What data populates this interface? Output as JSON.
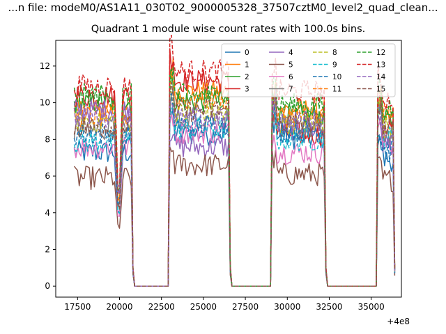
{
  "suptitle": "...n file: modeM0/AS1A11_030T02_9000005328_37507cztM0_level2_quad_clean...",
  "chart_data": {
    "type": "line",
    "title": "Quadrant 1 module wise count rates with 100.0s bins.",
    "xlabel": "",
    "ylabel": "",
    "x_offset_label": "+4e8",
    "xlim": [
      16200,
      36800
    ],
    "ylim": [
      -0.6,
      13.4
    ],
    "xticks": [
      17500,
      20000,
      22500,
      25000,
      27500,
      30000,
      32500,
      35000
    ],
    "yticks": [
      0,
      2,
      4,
      6,
      8,
      10,
      12
    ],
    "legend_position": "upper-right",
    "legend_ncol": 4,
    "bins_s": 100.0,
    "segments": [
      {
        "start": 17300,
        "end": 20800
      },
      {
        "start": 23000,
        "end": 26600
      },
      {
        "start": 29100,
        "end": 32300
      },
      {
        "start": 35400,
        "end": 36400
      }
    ],
    "dip": {
      "x": 19950,
      "y_factor": 0.4
    },
    "series": [
      {
        "name": "0",
        "color": "#1f77b4",
        "dash": "solid",
        "levels": [
          7.3,
          8.3,
          8.1,
          6.9
        ]
      },
      {
        "name": "1",
        "color": "#ff7f0e",
        "dash": "solid",
        "levels": [
          9.6,
          10.6,
          9.6,
          9.1
        ]
      },
      {
        "name": "2",
        "color": "#2ca02c",
        "dash": "solid",
        "levels": [
          10.0,
          10.1,
          9.3,
          9.0
        ]
      },
      {
        "name": "3",
        "color": "#d62728",
        "dash": "solid",
        "levels": [
          10.4,
          11.2,
          8.3,
          8.7
        ]
      },
      {
        "name": "4",
        "color": "#9467bd",
        "dash": "solid",
        "levels": [
          9.6,
          7.6,
          8.6,
          7.8
        ]
      },
      {
        "name": "5",
        "color": "#8c564b",
        "dash": "solid",
        "levels": [
          5.9,
          6.6,
          6.1,
          5.8
        ]
      },
      {
        "name": "6",
        "color": "#e377c2",
        "dash": "solid",
        "levels": [
          7.6,
          8.4,
          7.3,
          7.8
        ]
      },
      {
        "name": "7",
        "color": "#7f7f7f",
        "dash": "solid",
        "levels": [
          8.6,
          9.2,
          8.6,
          8.3
        ]
      },
      {
        "name": "8",
        "color": "#bcbd22",
        "dash": "dashed",
        "levels": [
          9.0,
          9.4,
          8.9,
          8.7
        ]
      },
      {
        "name": "9",
        "color": "#17becf",
        "dash": "dashed",
        "levels": [
          7.9,
          8.6,
          8.0,
          8.1
        ]
      },
      {
        "name": "10",
        "color": "#1f77b4",
        "dash": "dashed",
        "levels": [
          8.3,
          8.8,
          8.5,
          7.4
        ]
      },
      {
        "name": "11",
        "color": "#ff7f0e",
        "dash": "dashed",
        "levels": [
          9.3,
          10.2,
          9.3,
          9.4
        ]
      },
      {
        "name": "12",
        "color": "#2ca02c",
        "dash": "dashed",
        "levels": [
          10.4,
          10.4,
          9.9,
          9.7
        ]
      },
      {
        "name": "13",
        "color": "#d62728",
        "dash": "dashed",
        "levels": [
          10.9,
          11.7,
          10.6,
          10.2
        ]
      },
      {
        "name": "14",
        "color": "#9467bd",
        "dash": "dashed",
        "levels": [
          9.3,
          9.1,
          9.0,
          8.2
        ]
      },
      {
        "name": "15",
        "color": "#8c564b",
        "dash": "dashed",
        "levels": [
          8.7,
          9.6,
          8.9,
          8.6
        ]
      }
    ]
  }
}
